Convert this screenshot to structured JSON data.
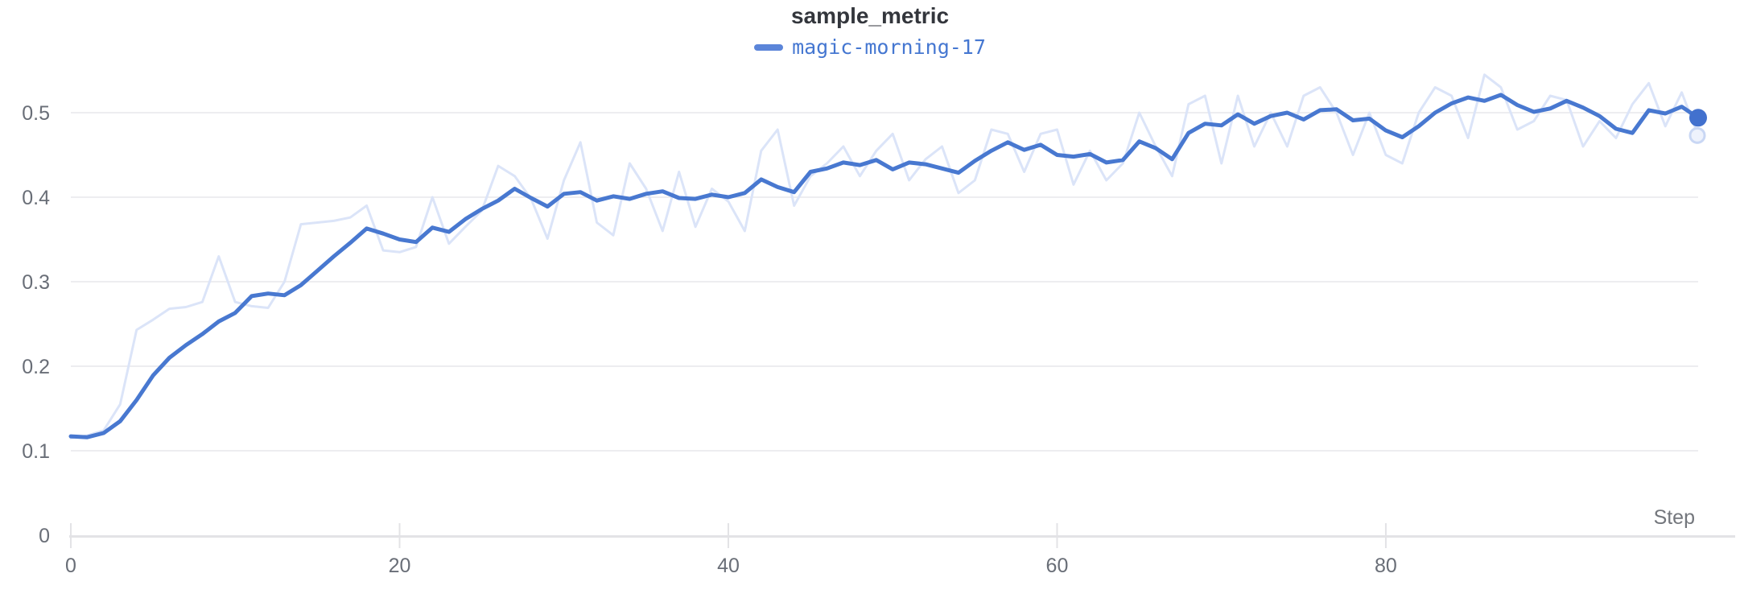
{
  "panel": {
    "title": "sample_metric"
  },
  "legend": {
    "label": "magic-morning-17",
    "swatch_color": "#5b85d9",
    "text_color": "#4577d1"
  },
  "axes": {
    "x_label": "Step",
    "x_tick_labels": [
      "0",
      "20",
      "40",
      "60",
      "80"
    ],
    "y_tick_labels": [
      "0",
      "0.1",
      "0.2",
      "0.3",
      "0.4",
      "0.5"
    ]
  },
  "colors": {
    "smoothed_line": "#4878d0",
    "raw_line": "#dbe4f8",
    "smoothed_end_dot": "#4271ce",
    "raw_end_dot_fill": "#eef2fc",
    "raw_end_dot_stroke": "#c9d7f4",
    "gridline": "#ededf0",
    "axis_line": "#e3e3e6",
    "tick_text": "#696e77",
    "title_text": "#33363c",
    "background": "#ffffff"
  },
  "chart_data": {
    "type": "line",
    "title": "sample_metric",
    "xlabel": "Step",
    "ylabel": "",
    "legend_position": "top-center",
    "grid": "horizontal",
    "x_ticks": [
      0,
      20,
      40,
      60,
      80
    ],
    "y_ticks": [
      0,
      0.1,
      0.2,
      0.3,
      0.4,
      0.5
    ],
    "xlim": [
      0,
      99
    ],
    "ylim": [
      0,
      0.5
    ],
    "x": [
      0,
      1,
      2,
      3,
      4,
      5,
      6,
      7,
      8,
      9,
      10,
      11,
      12,
      13,
      14,
      15,
      16,
      17,
      18,
      19,
      20,
      21,
      22,
      23,
      24,
      25,
      26,
      27,
      28,
      29,
      30,
      31,
      32,
      33,
      34,
      35,
      36,
      37,
      38,
      39,
      40,
      41,
      42,
      43,
      44,
      45,
      46,
      47,
      48,
      49,
      50,
      51,
      52,
      53,
      54,
      55,
      56,
      57,
      58,
      59,
      60,
      61,
      62,
      63,
      64,
      65,
      66,
      67,
      68,
      69,
      70,
      71,
      72,
      73,
      74,
      75,
      76,
      77,
      78,
      79,
      80,
      81,
      82,
      83,
      84,
      85,
      86,
      87,
      88,
      89,
      90,
      91,
      92,
      93,
      94,
      95,
      96,
      97,
      98,
      99
    ],
    "series": [
      {
        "name": "magic-morning-17",
        "variant": "original-faded",
        "color": "#dbe4f8",
        "values": [
          0.115,
          0.118,
          0.124,
          0.155,
          0.243,
          0.255,
          0.268,
          0.27,
          0.276,
          0.33,
          0.276,
          0.271,
          0.269,
          0.3,
          0.368,
          0.37,
          0.372,
          0.376,
          0.39,
          0.337,
          0.335,
          0.341,
          0.4,
          0.345,
          0.365,
          0.384,
          0.437,
          0.425,
          0.398,
          0.351,
          0.42,
          0.465,
          0.37,
          0.355,
          0.44,
          0.41,
          0.36,
          0.43,
          0.365,
          0.41,
          0.395,
          0.36,
          0.455,
          0.48,
          0.39,
          0.425,
          0.44,
          0.46,
          0.425,
          0.455,
          0.475,
          0.42,
          0.445,
          0.46,
          0.405,
          0.42,
          0.48,
          0.475,
          0.43,
          0.475,
          0.48,
          0.415,
          0.455,
          0.42,
          0.44,
          0.5,
          0.46,
          0.425,
          0.51,
          0.52,
          0.44,
          0.52,
          0.46,
          0.5,
          0.46,
          0.52,
          0.53,
          0.5,
          0.45,
          0.5,
          0.45,
          0.44,
          0.5,
          0.53,
          0.52,
          0.47,
          0.545,
          0.53,
          0.48,
          0.49,
          0.52,
          0.515,
          0.46,
          0.49,
          0.47,
          0.51,
          0.535,
          0.484,
          0.524,
          0.473
        ]
      },
      {
        "name": "magic-morning-17",
        "variant": "smoothed",
        "color": "#4878d0",
        "values": [
          0.117,
          0.116,
          0.121,
          0.135,
          0.16,
          0.189,
          0.21,
          0.225,
          0.238,
          0.253,
          0.263,
          0.283,
          0.286,
          0.284,
          0.296,
          0.313,
          0.33,
          0.346,
          0.363,
          0.357,
          0.35,
          0.347,
          0.364,
          0.359,
          0.374,
          0.386,
          0.396,
          0.41,
          0.399,
          0.389,
          0.404,
          0.406,
          0.396,
          0.401,
          0.398,
          0.404,
          0.407,
          0.399,
          0.398,
          0.403,
          0.4,
          0.405,
          0.421,
          0.412,
          0.406,
          0.43,
          0.434,
          0.441,
          0.438,
          0.444,
          0.433,
          0.441,
          0.439,
          0.434,
          0.429,
          0.443,
          0.455,
          0.465,
          0.456,
          0.462,
          0.45,
          0.448,
          0.451,
          0.441,
          0.444,
          0.466,
          0.458,
          0.445,
          0.476,
          0.487,
          0.485,
          0.498,
          0.487,
          0.496,
          0.5,
          0.492,
          0.503,
          0.504,
          0.491,
          0.493,
          0.479,
          0.471,
          0.484,
          0.5,
          0.511,
          0.518,
          0.514,
          0.521,
          0.509,
          0.501,
          0.505,
          0.514,
          0.506,
          0.496,
          0.481,
          0.476,
          0.503,
          0.499,
          0.507,
          0.494
        ]
      }
    ],
    "end_markers": {
      "smoothed_last_value": 0.494,
      "raw_last_value": 0.473,
      "last_step": 99
    }
  }
}
